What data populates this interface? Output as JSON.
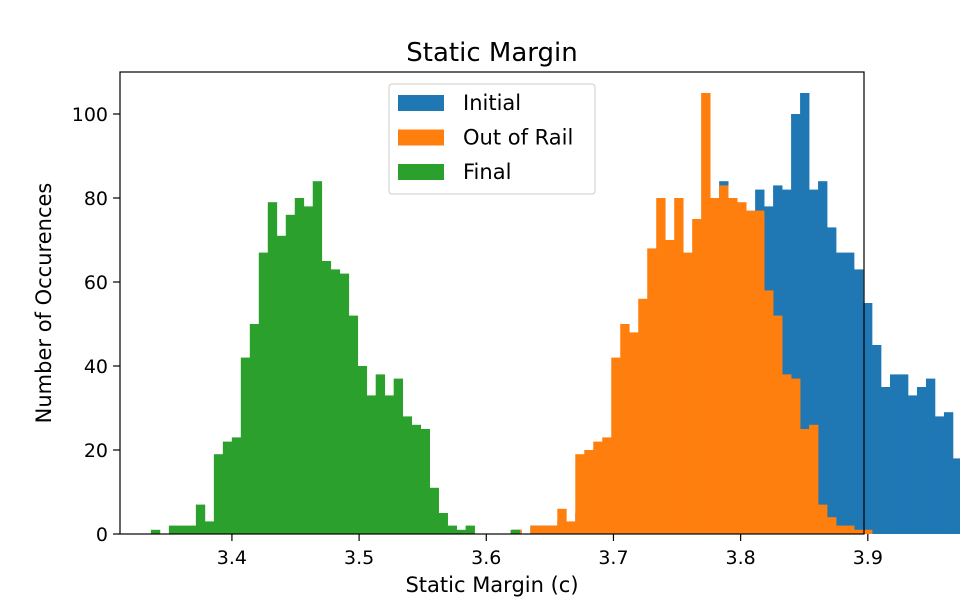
{
  "chart_data": {
    "type": "bar",
    "subtype": "histogram",
    "title": "Static Margin",
    "xlabel": "Static Margin (c)",
    "ylabel": "Number of Occurences",
    "xlim": [
      3.312,
      3.897
    ],
    "ylim": [
      0,
      110
    ],
    "xticks": [
      3.4,
      3.5,
      3.6,
      3.7,
      3.8,
      3.9
    ],
    "xtick_labels": [
      "3.4",
      "3.5",
      "3.6",
      "3.7",
      "3.8",
      "3.9"
    ],
    "yticks": [
      0,
      20,
      40,
      60,
      80,
      100
    ],
    "ytick_labels": [
      "0",
      "20",
      "40",
      "60",
      "80",
      "100"
    ],
    "grid": false,
    "legend_position": "upper center",
    "series": [
      {
        "name": "Initial",
        "color": "#1f77b4",
        "bin_start": 3.6205,
        "bin_width": 0.00707,
        "counts": [
          1,
          0,
          2,
          2,
          2,
          3,
          2,
          5,
          6,
          6,
          6,
          7,
          10,
          12,
          19,
          27,
          35,
          48,
          55,
          54,
          65,
          58,
          79,
          84,
          75,
          75,
          76,
          82,
          78,
          83,
          82,
          100,
          105,
          82,
          84,
          73,
          67,
          67,
          63,
          55,
          45,
          35,
          38,
          38,
          33,
          35,
          37,
          28,
          29,
          18,
          16,
          8,
          4,
          5,
          6,
          2,
          2,
          0,
          0,
          0,
          0,
          0,
          0,
          0,
          0,
          0,
          0,
          0,
          0,
          0,
          0,
          0,
          2,
          0
        ]
      },
      {
        "name": "Out of Rail",
        "color": "#ff7f0e",
        "bin_start": 3.6205,
        "bin_width": 0.00707,
        "counts": [
          1,
          0,
          2,
          2,
          2,
          6,
          3,
          19,
          20,
          22,
          23,
          42,
          50,
          48,
          56,
          68,
          80,
          70,
          80,
          67,
          75,
          105,
          80,
          83,
          80,
          79,
          77,
          77,
          58,
          52,
          38,
          37,
          25,
          26,
          7,
          4,
          2,
          2,
          1,
          1,
          0,
          0,
          0,
          0,
          0,
          0,
          0,
          0,
          0,
          0,
          0,
          0,
          0,
          0,
          0,
          0,
          0,
          0,
          0,
          0,
          0,
          0,
          0,
          0,
          0,
          0,
          0,
          0,
          0,
          0,
          0,
          0,
          0,
          0
        ]
      },
      {
        "name": "Final",
        "color": "#2ca02c",
        "bin_start": 3.3363,
        "bin_width": 0.00707,
        "counts": [
          1,
          0,
          2,
          2,
          2,
          7,
          3,
          19,
          22,
          23,
          42,
          50,
          67,
          79,
          71,
          76,
          80,
          78,
          84,
          65,
          63,
          62,
          52,
          40,
          33,
          38,
          33,
          37,
          28,
          26,
          25,
          11,
          5,
          2,
          1,
          2,
          0,
          0,
          0,
          0,
          1,
          0,
          0,
          0,
          0,
          0,
          0,
          0,
          0,
          0,
          0,
          0,
          0,
          0,
          0,
          0,
          0,
          0,
          0,
          0,
          0,
          0,
          0,
          0,
          0,
          0,
          0,
          0,
          0,
          0,
          0,
          0,
          0,
          0
        ]
      }
    ]
  }
}
